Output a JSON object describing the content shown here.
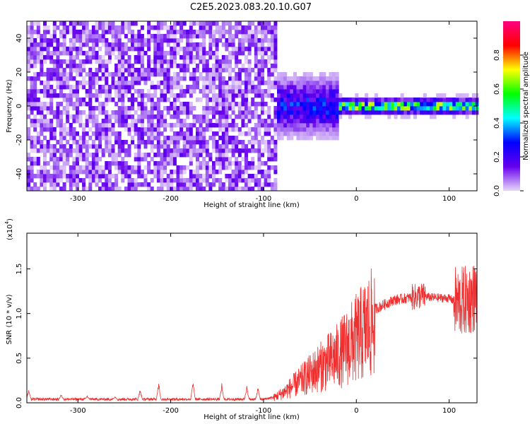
{
  "title": "C2E5.2023.083.20.10.G07",
  "chart_data": [
    {
      "type": "heatmap",
      "xlabel": "Height of straight line (km)",
      "ylabel": "Frequency (Hz)",
      "xlim": [
        -355,
        130
      ],
      "ylim": [
        -50,
        50
      ],
      "xticks": [
        -300,
        -200,
        -100,
        0,
        100
      ],
      "yticks": [
        -40,
        -20,
        0,
        20,
        40
      ],
      "colorbar": {
        "label": "Normalized spectral amplitude",
        "range": [
          0.0,
          1.0
        ],
        "ticks": [
          "0.0",
          "0.2",
          "0.4",
          "0.6",
          "0.8"
        ],
        "stops": [
          "#e8d8f8",
          "#6600ee",
          "#0000ff",
          "#00ffff",
          "#00ff00",
          "#ffff00",
          "#ff0000",
          "#ff0080"
        ]
      },
      "regions": [
        {
          "x": [
            -355,
            -87
          ],
          "freq_spread": [
            -50,
            50
          ],
          "amplitude": 0.08
        },
        {
          "x": [
            -87,
            -20
          ],
          "freq_spread": [
            -18,
            18
          ],
          "amplitude": 0.25
        },
        {
          "x": [
            -20,
            130
          ],
          "freq_spread": [
            -5,
            5
          ],
          "amplitude": 0.55
        }
      ]
    },
    {
      "type": "line",
      "xlabel": "Height of straight line (km)",
      "ylabel": "SNR (10 * v/v)",
      "y_multiplier": "(x10",
      "y_multiplier_exp": "4",
      "y_multiplier_close": ")",
      "xlim": [
        -355,
        130
      ],
      "ylim": [
        0.0,
        1.9
      ],
      "xticks": [
        -300,
        -200,
        -100,
        0,
        100
      ],
      "yticks": [
        "0.0",
        "0.5",
        "1.0",
        "1.5"
      ],
      "series_color": "#ee3030",
      "envelope": {
        "x": [
          -355,
          -100,
          -90,
          -80,
          -60,
          -40,
          -20,
          0,
          20,
          40,
          60,
          70,
          80,
          100,
          110,
          120,
          130
        ],
        "y": [
          0.04,
          0.04,
          0.06,
          0.12,
          0.28,
          0.45,
          0.6,
          0.82,
          1.05,
          1.15,
          1.18,
          1.2,
          1.18,
          1.17,
          1.12,
          1.15,
          1.2
        ]
      },
      "spikes": [
        {
          "x": -353,
          "y": 0.17
        },
        {
          "x": -318,
          "y": 0.1
        },
        {
          "x": -290,
          "y": 0.08
        },
        {
          "x": -260,
          "y": 0.07
        },
        {
          "x": -233,
          "y": 0.15
        },
        {
          "x": -213,
          "y": 0.25
        },
        {
          "x": -176,
          "y": 0.24
        },
        {
          "x": -145,
          "y": 0.22
        },
        {
          "x": -118,
          "y": 0.2
        },
        {
          "x": -106,
          "y": 0.18
        }
      ]
    }
  ]
}
